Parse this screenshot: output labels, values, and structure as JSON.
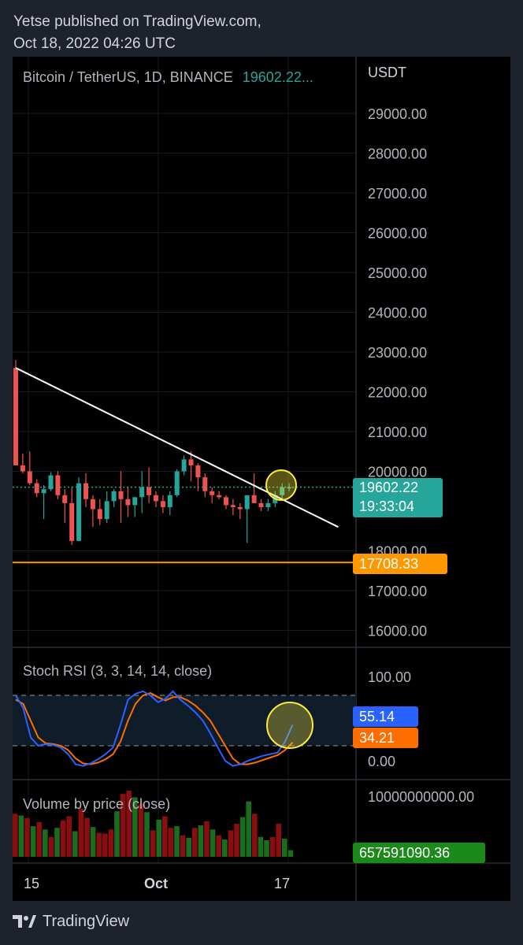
{
  "header": {
    "published_line": "Yetse published on TradingView.com,",
    "date_line": "Oct 18, 2022 04:26 UTC"
  },
  "main_chart": {
    "symbol": "Bitcoin / TetherUS, 1D, BINANCE",
    "last_price": "19602.22...",
    "currency": "USDT",
    "price_tag": "19602.22",
    "countdown": "19:33:04",
    "support_tag": "17708.33",
    "colors": {
      "up": "#26a69a",
      "down": "#ef5350",
      "support": "#ff9800",
      "trendline": "#ffffff",
      "highlight": "#ffeb3b"
    }
  },
  "stoch_rsi": {
    "title": "Stoch RSI (3, 3, 14, 14, close)",
    "k_value": "55.14",
    "d_value": "34.21",
    "colors": {
      "k": "#2962ff",
      "d": "#ff6d00"
    }
  },
  "volume": {
    "title": "Volume by price (close)",
    "scale_max": "10000000000.00",
    "value_tag": "657591090.36"
  },
  "time_axis": [
    "15",
    "Oct",
    "17"
  ],
  "footer": {
    "brand": "TradingView",
    "logo_icon": "tradingview-logo-icon"
  },
  "chart_data": [
    {
      "type": "candlestick",
      "title": "Bitcoin / TetherUS, 1D, BINANCE",
      "ylabel": "USDT",
      "yticks": [
        "29000.00",
        "28000.00",
        "27000.00",
        "26000.00",
        "25000.00",
        "24000.00",
        "23000.00",
        "22000.00",
        "21000.00",
        "20000.00",
        "18000.00",
        "17000.00",
        "16000.00"
      ],
      "ylim": [
        15700,
        29900
      ],
      "candles": [
        [
          22600,
          22800,
          20200,
          20150
        ],
        [
          20150,
          20450,
          19950,
          20000
        ],
        [
          20000,
          20500,
          19650,
          19700
        ],
        [
          19700,
          19800,
          19350,
          19450
        ],
        [
          19450,
          19650,
          18800,
          19550
        ],
        [
          19550,
          19980,
          19500,
          19900
        ],
        [
          19900,
          20000,
          19300,
          19400
        ],
        [
          19400,
          19550,
          18700,
          19200
        ],
        [
          19200,
          19600,
          18150,
          18250
        ],
        [
          18250,
          19850,
          18300,
          19700
        ],
        [
          19700,
          19950,
          19100,
          19300
        ],
        [
          19300,
          19400,
          18600,
          19050
        ],
        [
          19050,
          19300,
          18650,
          18800
        ],
        [
          18800,
          19500,
          18700,
          19250
        ],
        [
          19250,
          19550,
          19100,
          19500
        ],
        [
          19500,
          20000,
          18700,
          19300
        ],
        [
          19300,
          19600,
          18850,
          19150
        ],
        [
          19150,
          19350,
          18850,
          19350
        ],
        [
          19350,
          20000,
          18950,
          19600
        ],
        [
          19600,
          20100,
          19200,
          19400
        ],
        [
          19400,
          19500,
          19100,
          19250
        ],
        [
          19250,
          19400,
          18950,
          19100
        ],
        [
          19100,
          19500,
          18900,
          19400
        ],
        [
          19400,
          20050,
          19350,
          20000
        ],
        [
          20000,
          20400,
          19900,
          20300
        ],
        [
          20300,
          20500,
          19750,
          20150
        ],
        [
          20150,
          20200,
          19500,
          19850
        ],
        [
          19850,
          19950,
          19350,
          19500
        ],
        [
          19500,
          19600,
          19200,
          19400
        ],
        [
          19400,
          19500,
          19300,
          19350
        ],
        [
          19350,
          19400,
          19050,
          19150
        ],
        [
          19150,
          19300,
          18900,
          19100
        ],
        [
          19100,
          19200,
          18800,
          19050
        ],
        [
          19050,
          19300,
          18200,
          19400
        ],
        [
          19400,
          19950,
          19300,
          19200
        ],
        [
          19200,
          19300,
          19000,
          19100
        ],
        [
          19100,
          19300,
          19000,
          19200
        ],
        [
          19200,
          19500,
          19100,
          19400
        ],
        [
          19400,
          19700,
          19250,
          19600
        ],
        [
          19600,
          19700,
          19500,
          19602.22
        ]
      ],
      "trendline": [
        [
          0,
          22600
        ],
        [
          46,
          18600
        ]
      ],
      "support_level": 17708.33,
      "last_price": 19602.22
    },
    {
      "type": "line",
      "title": "Stoch RSI (3, 3, 14, 14, close)",
      "yticks": [
        "100.00",
        "0.00"
      ],
      "ylim": [
        -10,
        115
      ],
      "bands": [
        80,
        20
      ],
      "series": [
        {
          "name": "K",
          "values": [
            90,
            75,
            40,
            30,
            32,
            31,
            28,
            20,
            8,
            6,
            9,
            14,
            20,
            28,
            55,
            85,
            92,
            95,
            90,
            82,
            86,
            95,
            85,
            78,
            70,
            60,
            45,
            28,
            12,
            6,
            8,
            12,
            15,
            18,
            20,
            22,
            35,
            55
          ]
        },
        {
          "name": "D",
          "values": [
            85,
            80,
            60,
            40,
            33,
            32,
            30,
            25,
            15,
            9,
            8,
            10,
            14,
            20,
            35,
            60,
            80,
            90,
            93,
            88,
            84,
            88,
            88,
            84,
            78,
            70,
            60,
            45,
            30,
            15,
            8,
            8,
            10,
            13,
            16,
            19,
            25,
            34
          ]
        }
      ]
    },
    {
      "type": "bar",
      "title": "Volume by price (close)",
      "values": [
        52,
        50,
        47,
        37,
        42,
        33,
        24,
        35,
        44,
        49,
        31,
        58,
        47,
        36,
        29,
        28,
        33,
        55,
        76,
        80,
        72,
        64,
        54,
        32,
        45,
        49,
        35,
        37,
        26,
        23,
        35,
        38,
        43,
        33,
        26,
        21,
        32,
        40,
        48,
        67,
        52,
        24,
        20,
        24,
        40,
        22,
        8
      ],
      "colors": [
        "d",
        "g",
        "d",
        "g",
        "d",
        "g",
        "d",
        "g",
        "d",
        "d",
        "g",
        "d",
        "d",
        "g",
        "d",
        "d",
        "d",
        "g",
        "d",
        "d",
        "g",
        "d",
        "g",
        "d",
        "g",
        "d",
        "d",
        "g",
        "d",
        "g",
        "d",
        "g",
        "d",
        "g",
        "d",
        "g",
        "d",
        "d",
        "g",
        "g",
        "d",
        "g",
        "g",
        "d",
        "d",
        "g",
        "g"
      ]
    }
  ]
}
